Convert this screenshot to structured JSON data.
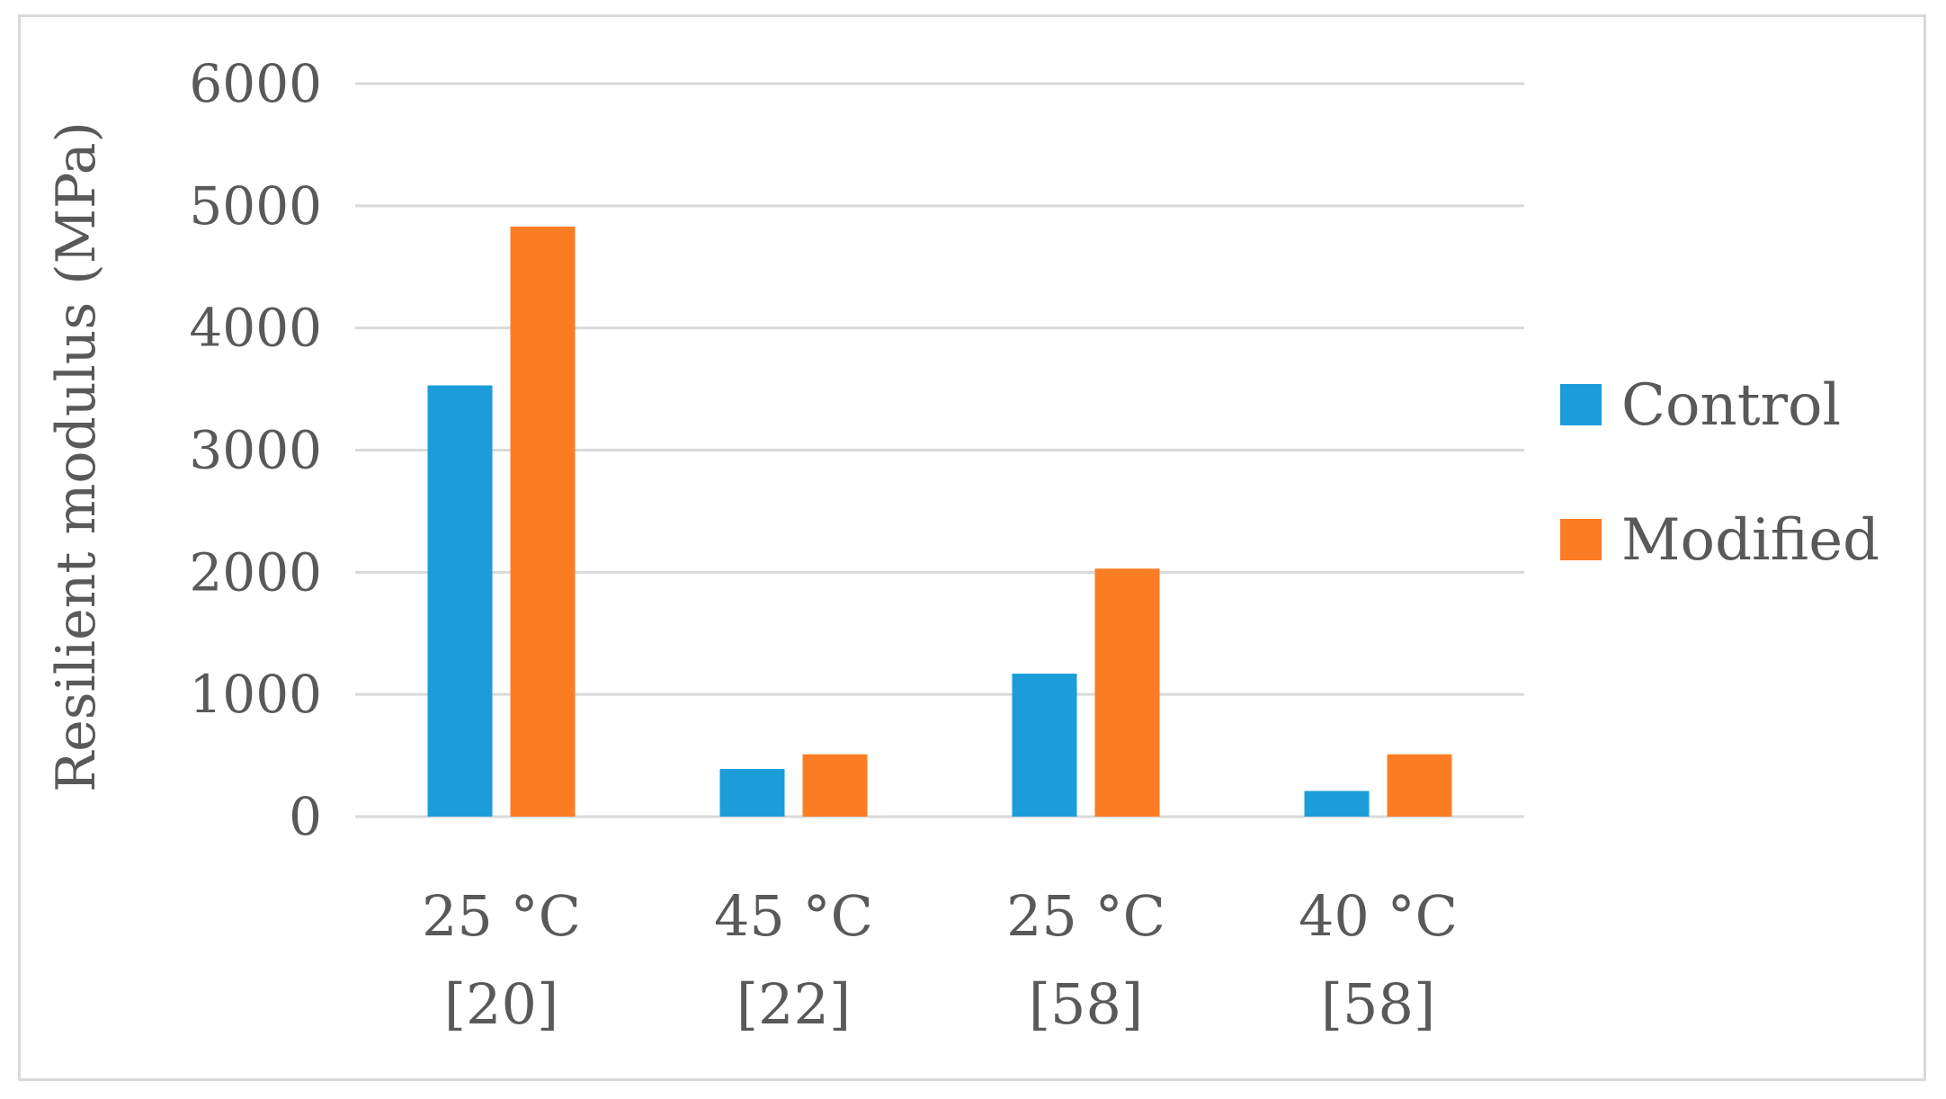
{
  "chart_data": {
    "type": "bar",
    "categories": [
      [
        "25 °C",
        "[20]"
      ],
      [
        "45 °C",
        "[22]"
      ],
      [
        "25 °C",
        "[58]"
      ],
      [
        "40 °C",
        "[58]"
      ]
    ],
    "series": [
      {
        "name": "Control",
        "color": "#1b9dd9",
        "values": [
          3530,
          390,
          1170,
          210
        ]
      },
      {
        "name": "Modified",
        "color": "#fb7d23",
        "values": [
          4830,
          510,
          2030,
          510
        ]
      }
    ],
    "ylabel": "Resilient modulus (MPa)",
    "xlabel": "",
    "ylim": [
      0,
      6000
    ],
    "yticks": [
      "0",
      "1000",
      "2000",
      "3000",
      "4000",
      "5000",
      "6000"
    ],
    "grid": true,
    "legend_position": "right",
    "gridline_color": "#d9d9d9",
    "text_color": "#595959"
  }
}
